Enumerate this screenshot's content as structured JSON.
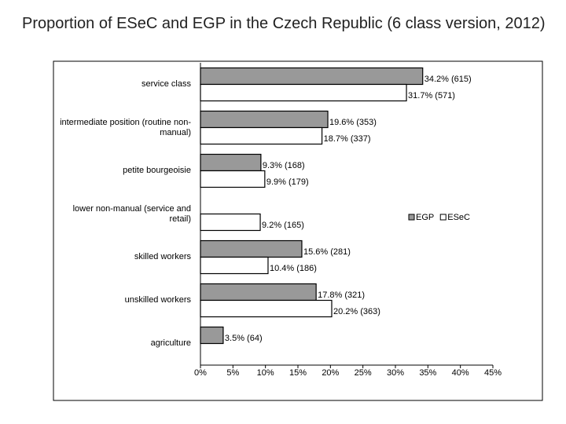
{
  "chart_data": {
    "type": "bar",
    "orientation": "horizontal",
    "title": "Proportion of ESeC and EGP in the Czech Republic (6 class version, 2012)",
    "categories": [
      "service class",
      "intermediate position (routine non-manual)",
      "petite bourgeoisie",
      "lower non-manual (service and retail)",
      "skilled workers",
      "unskilled workers",
      "agriculture"
    ],
    "series": [
      {
        "name": "EGP",
        "color": "#999999",
        "values": [
          34.2,
          19.6,
          9.3,
          null,
          15.6,
          17.8,
          3.5
        ],
        "value_labels": [
          "34.2% (615)",
          "19.6% (353)",
          "9.3% (168)",
          null,
          "15.6% (281)",
          "17.8% (321)",
          "3.5% (64)"
        ]
      },
      {
        "name": "ESeC",
        "color": "#ffffff",
        "values": [
          31.7,
          18.7,
          9.9,
          9.2,
          10.4,
          20.2,
          null
        ],
        "value_labels": [
          "31.7% (571)",
          "18.7% (337)",
          "9.9% (179)",
          "9.2% (165)",
          "10.4% (186)",
          "20.2% (363)",
          null
        ]
      }
    ],
    "xlim": [
      0,
      45
    ],
    "xticks": [
      {
        "value": 0,
        "label": "0%"
      },
      {
        "value": 5,
        "label": "5%"
      },
      {
        "value": 10,
        "label": "10%"
      },
      {
        "value": 15,
        "label": "15%"
      },
      {
        "value": 20,
        "label": "20%"
      },
      {
        "value": 25,
        "label": "25%"
      },
      {
        "value": 30,
        "label": "30%"
      },
      {
        "value": 35,
        "label": "35%"
      },
      {
        "value": 40,
        "label": "40%"
      },
      {
        "value": 45,
        "label": "45%"
      }
    ],
    "legend": "right"
  }
}
